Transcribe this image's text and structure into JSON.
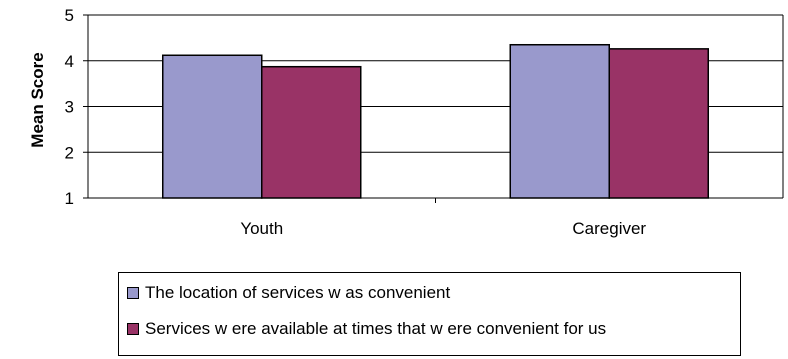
{
  "chart_data": {
    "type": "bar",
    "categories": [
      "Youth",
      "Caregiver"
    ],
    "series": [
      {
        "name": "The location of services w as convenient",
        "color": "#9999cc",
        "values": [
          4.12,
          4.35
        ]
      },
      {
        "name": "Services w ere available at times that w ere convenient for us",
        "color": "#993366",
        "values": [
          3.87,
          4.26
        ]
      }
    ],
    "ylabel": "Mean Score",
    "xlabel": "",
    "ylim": [
      1,
      5
    ],
    "yticks": [
      1,
      2,
      3,
      4,
      5
    ],
    "grid": true,
    "legend_position": "bottom"
  }
}
